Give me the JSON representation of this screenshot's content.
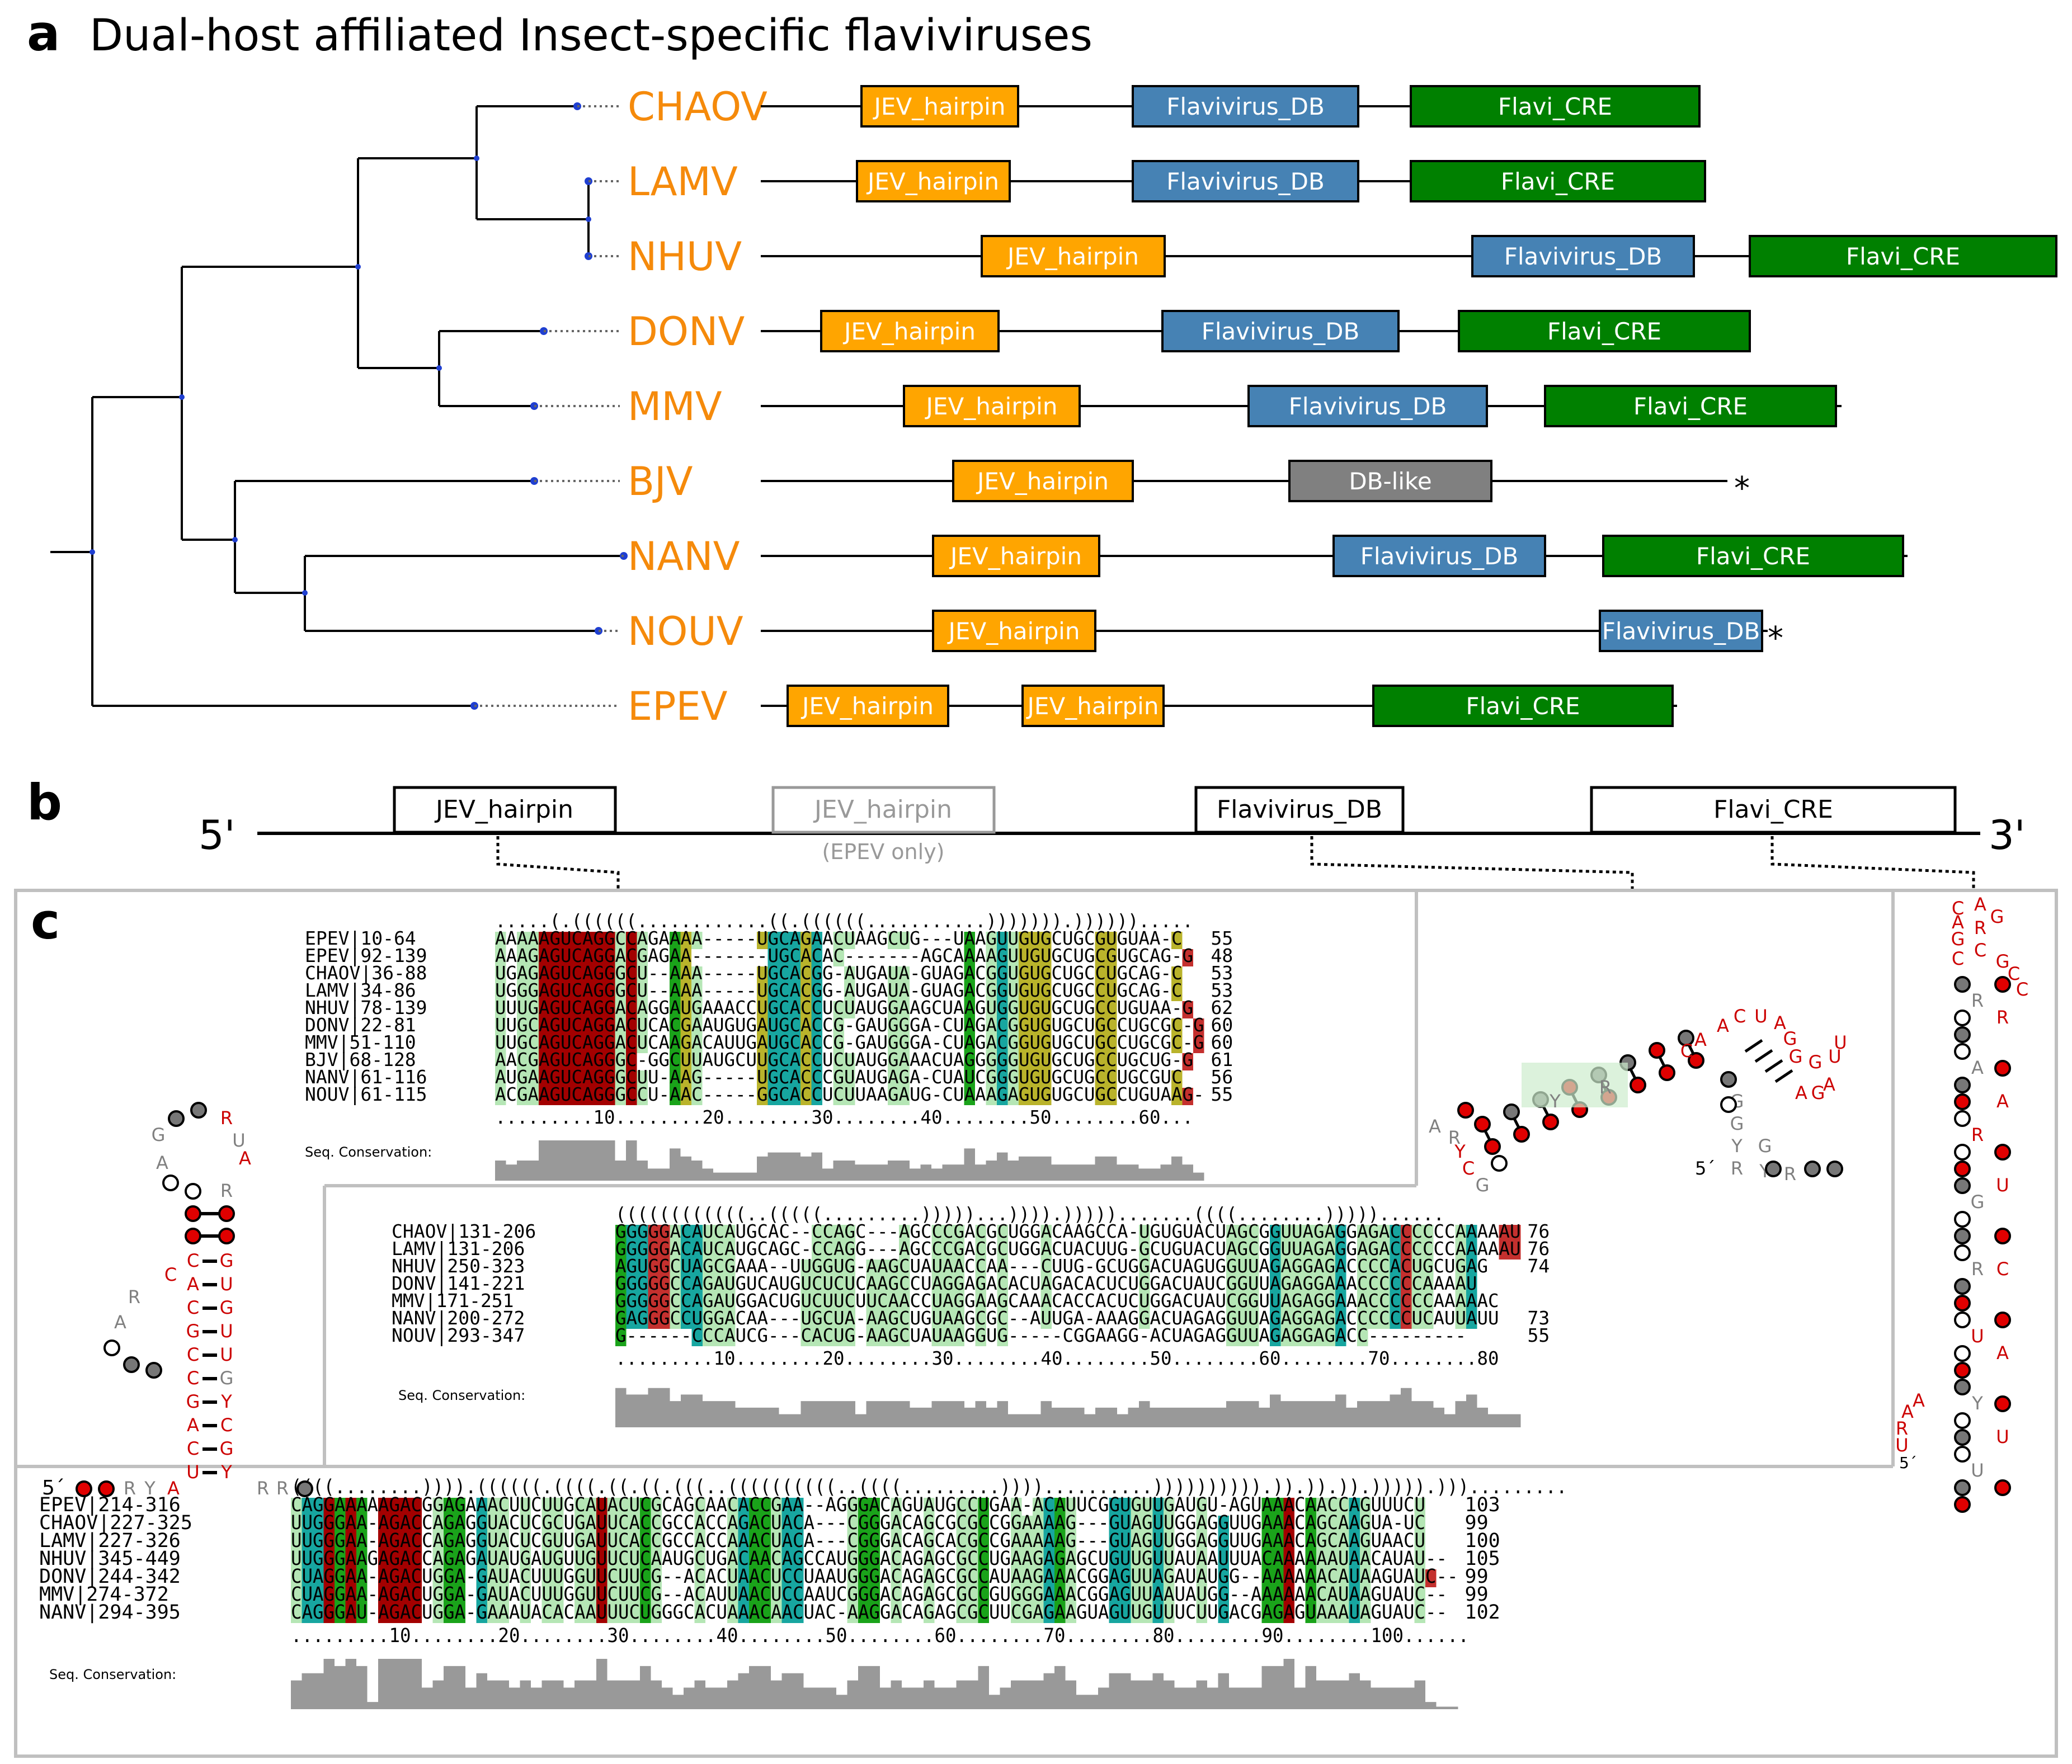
{
  "panel_a": {
    "letter": "a",
    "title": "Dual-host affiliated Insect-specific flaviviruses",
    "taxa": [
      {
        "name": "CHAOV",
        "domains": [
          {
            "label": "JEV_hairpin",
            "type": "jev"
          },
          {
            "label": "Flavivirus_DB",
            "type": "db"
          },
          {
            "label": "Flavi_CRE",
            "type": "cre"
          }
        ],
        "star": false
      },
      {
        "name": "LAMV",
        "domains": [
          {
            "label": "JEV_hairpin",
            "type": "jev"
          },
          {
            "label": "Flavivirus_DB",
            "type": "db"
          },
          {
            "label": "Flavi_CRE",
            "type": "cre"
          }
        ],
        "star": false
      },
      {
        "name": "NHUV",
        "domains": [
          {
            "label": "JEV_hairpin",
            "type": "jev"
          },
          {
            "label": "Flavivirus_DB",
            "type": "db"
          },
          {
            "label": "Flavi_CRE",
            "type": "cre"
          }
        ],
        "star": false
      },
      {
        "name": "DONV",
        "domains": [
          {
            "label": "JEV_hairpin",
            "type": "jev"
          },
          {
            "label": "Flavivirus_DB",
            "type": "db"
          },
          {
            "label": "Flavi_CRE",
            "type": "cre"
          }
        ],
        "star": false
      },
      {
        "name": "MMV",
        "domains": [
          {
            "label": "JEV_hairpin",
            "type": "jev"
          },
          {
            "label": "Flavivirus_DB",
            "type": "db"
          },
          {
            "label": "Flavi_CRE",
            "type": "cre"
          }
        ],
        "star": false
      },
      {
        "name": "BJV",
        "domains": [
          {
            "label": "JEV_hairpin",
            "type": "jev"
          },
          {
            "label": "DB-like",
            "type": "dblike"
          }
        ],
        "star": true
      },
      {
        "name": "NANV",
        "domains": [
          {
            "label": "JEV_hairpin",
            "type": "jev"
          },
          {
            "label": "Flavivirus_DB",
            "type": "db"
          },
          {
            "label": "Flavi_CRE",
            "type": "cre"
          }
        ],
        "star": false
      },
      {
        "name": "NOUV",
        "domains": [
          {
            "label": "JEV_hairpin",
            "type": "jev"
          },
          {
            "label": "Flavivirus_DB",
            "type": "db"
          }
        ],
        "star": true
      },
      {
        "name": "EPEV",
        "domains": [
          {
            "label": "JEV_hairpin",
            "type": "jev"
          },
          {
            "label": "JEV_hairpin",
            "type": "jev"
          },
          {
            "label": "Flavi_CRE",
            "type": "cre"
          }
        ],
        "star": false
      }
    ],
    "star_symbol": "*"
  },
  "panel_b": {
    "letter": "b",
    "five_prime": "5'",
    "three_prime": "3'",
    "domains": [
      "JEV_hairpin",
      "JEV_hairpin",
      "Flavivirus_DB",
      "Flavi_CRE"
    ],
    "epev_note": "(EPEV only)"
  },
  "panel_c": {
    "letter": "c",
    "conservation_label": "Seq. Conservation:",
    "align1": {
      "structure": ".....(.((((((............((.((((((...........))))))).)))))).....",
      "rows": [
        {
          "id": "EPEV|10-64",
          "seq": "AAAAAGUCAGGCCAGAAAA-----UGCAGAACUAAGCUG---UAAGUUGUGCUGCGUGUAA-C",
          "end": "55"
        },
        {
          "id": "EPEV|92-139",
          "seq": "AAAGAGUCAGGACGAGAA-------UGCACAC-------AGCAAAAGUUGUGCUGCGUGCAG-G",
          "end": "48"
        },
        {
          "id": "CHAOV|36-88",
          "seq": "UGAGAGUCAGGGCU--AAA-----UGCACGG-AUGAUA-GUAGACGGUGUGCUGCCUGCAG-C",
          "end": "53"
        },
        {
          "id": "LAMV|34-86",
          "seq": "UGGGAGUCAGGGCU--AAA-----UGCACGG-AUGAUA-GUAGACGGUGUGCUGCCUGCAG-C",
          "end": "53"
        },
        {
          "id": "NHUV|78-139",
          "seq": "UUUGAGUCAGGACAGGAUGAAACCUGCACCUCUAUGGAAGCUAAGUGGUGUGCUGCCUGUAA-G",
          "end": "62"
        },
        {
          "id": "DONV|22-81",
          "seq": "UUGCAGUCAGGACUCACGAAUGUGAUGCACCG-GAUGGGA-CUAGACGGUGUGCUGCCUGCGC-G",
          "end": "60"
        },
        {
          "id": "MMV|51-110",
          "seq": "UUGCAGUCAGGACUCAAGACAUUGAUGCACCG-GAUGGGA-CUAGACGGUGUGCUGCCUGCGC-G",
          "end": "60"
        },
        {
          "id": "BJV|68-128",
          "seq": "AACGAGUCAGGGC-GGCUUAUGCUUGCACCUCUAUGGAAACUAGGGGGUGUGCUGCCUGCUG-G",
          "end": "61"
        },
        {
          "id": "NANV|61-116",
          "seq": "AUGAAGUCAGGGCUU-AAG-----UGCACCCGUAUGAGA-CUAUCGGGUGUGCUGCCUGCGUC",
          "end": "56"
        },
        {
          "id": "NOUV|61-115",
          "seq": "ACGAAGUCAGGGCCU-AAC-----GGCACCUCUUAAGAUG-CUAAAGAGUGUGCUGCCUGUAAG-",
          "end": "55"
        }
      ],
      "ruler": ".........10........20........30........40........50........60..."
    },
    "align2": {
      "structure": "((((((((((((..(((((.........)))))...)))).))))).......((((........)))))......",
      "rows": [
        {
          "id": "CHAOV|131-206",
          "seq": "GGGGGACAUCAUGCAC--CCAGC---AGCCCGACGCUGGACAAGCCA-UGUGUACUAGCGGUUAGAGGAGACCCCCCAAAAAU",
          "end": "76"
        },
        {
          "id": "LAMV|131-206",
          "seq": "GGGGGACAUCAUGCAGC-CCAGG---AGCCCGACGCUGGACUACUUG-GCUGUACUAGCGGUUAGAGGAGACCCCCCAAAAAU",
          "end": "76"
        },
        {
          "id": "NHUV|250-323",
          "seq": "AGUGGCUAGCGAAA--UUGGUG-AAGCUAUAACCAA---CUUG-GCUGGACUAGUGGUUAGAGGAGACCCCACUGCUGAG",
          "end": "74"
        },
        {
          "id": "DONV|141-221",
          "seq": "GGGGGCCAGAUGUCAUGUCUCUCAAGCCUAGGAGACACUAGACACUCUGGACUAUCGGUUAGAGGAAACCCCCCAAAAU",
          "end": ""
        },
        {
          "id": "MMV|171-251",
          "seq": "GGGGGCCAGAUGGACUGUCUUCUUCAACCUAGGAAGCAAACACCACUCUGGACUAUCGGUUAGAGGAAACCCCCCAAAAAC",
          "end": ""
        },
        {
          "id": "NANV|200-272",
          "seq": "GAGGGCCUGGACAA---UGCUA-AAGCUGUAAGCGC--AUUGA-AAAGGACUAGAGGUUAGAGGAGACCCCCCUCAUUAUU",
          "end": "73"
        },
        {
          "id": "NOUV|293-347",
          "seq": "G------CCCAUCG---CACUG-AAGCUAUAAGGUG-----CGGAAGG-ACUAGAGGUUAGAGGAGACC---------",
          "end": "55"
        }
      ],
      "ruler": ".........10........20........30........40........50........60........70........80"
    },
    "align3": {
      "structure": "((((........)))).((((((.((((.((.((.(((..((((((((((..((((.........))))..........)))))))))).)).)).)).))))).))).........",
      "rows": [
        {
          "id": "EPEV|214-316",
          "seq": "CAGGAAAAAGACGGAGAAACUUCUUGCAUACUCGCAGCAACACCGAA--AGGGACAGUAUGCCUGAA-ACAUUCGGUGUUGAUGU-AGUAAACAACCAGUUUCU",
          "end": "103"
        },
        {
          "id": "CHAOV|227-325",
          "seq": "UUGGGAA-AGACCAGAGGUACUCGCUGAUUCACCGCCACCAGACUACA---CGGGACAGCGCGCCGGAAAAG---GUAGUUGGAGGUUGAAACAGCAAGUA-UC",
          "end": "99"
        },
        {
          "id": "LAMV|227-326",
          "seq": "UUGGGAA-AGACCAGAGGUACUCGUUGAUUCACCGCCACCAAACUACA---CGGGACAGCACGCCGAAAAAG---GUAGUUGGAGGUUGAAACAGCAAGUAACU",
          "end": "100"
        },
        {
          "id": "NHUV|345-449",
          "seq": "UUGGGAAGAGACCAGAGAUAUGAUGUUGUUCUCAAUGCUGACAACAGCCAUGGGACAGAGCGCCUGAAGAGAGCUGUUGUUAUAAUUUACAAAAAAUAACAUAU--",
          "end": "105"
        },
        {
          "id": "DONV|244-342",
          "seq": "CUAGGAA-AGACUGGA-GAUACUUUGGUUCUUCG--ACACUAACUCCUAAUGGGACAGAGCGCCAUAAGAAACGGAGUUAGAUAUGG--AAAAAACAUAAGUAUC--",
          "end": "99"
        },
        {
          "id": "MMV|274-372",
          "seq": "CUAGGAA-AGACUGGA-GAUACUUUGGUUCUUCG--ACAUUAACUCCAAUCGGGACAGAGCGCCGUGGGAAACGGAGUUAAUAUGG--AAAAAACAUAAGUAUC--",
          "end": "99"
        },
        {
          "id": "NANV|294-395",
          "seq": "CAGGGAU-AGACUGGA-GAAAUACACAAUUUCUGGGCACUAAACAACUAC-AAGGACAGAGCGCUUCGAGAAGUAGUUGUUUCUUGACGAGAGUAAAUAGUAUC--",
          "end": "102"
        }
      ],
      "ruler": ".........10........20........30........40........50........60........70........80........90........100......"
    },
    "struct_jev": {
      "loop": [
        "G",
        "A",
        "R",
        "U",
        "A"
      ],
      "stem_left": [
        "C",
        "A",
        "C",
        "G",
        "C",
        "G",
        "A",
        "C",
        "U"
      ],
      "stem_right": [
        "G",
        "U",
        "G",
        "U",
        "U",
        "G",
        "Y",
        "C",
        "G",
        "Y"
      ],
      "bulge": [
        "R",
        "A"
      ],
      "ambig": [
        "R",
        "R",
        "Y",
        "R",
        "R",
        "R",
        "R",
        "A"
      ],
      "five_prime": "5´"
    },
    "struct_db": {
      "letters": [
        "A",
        "C",
        "U",
        "A",
        "G",
        "G",
        "G",
        "U",
        "U",
        "A",
        "G",
        "A",
        "G",
        "G",
        "A",
        "C",
        "C",
        "U",
        "Y",
        "R",
        "G",
        "Y",
        "R",
        "Y",
        "C",
        "Y",
        "C",
        "G",
        "A",
        "A",
        "R"
      ],
      "five_prime": "5´"
    },
    "struct_cre": {
      "letters": [
        "C",
        "A",
        "G",
        "A",
        "R",
        "G",
        "C",
        "C",
        "G",
        "C",
        "C",
        "R",
        "R",
        "A",
        "A",
        "R",
        "U",
        "G",
        "R",
        "C",
        "U",
        "A",
        "Y",
        "U",
        "U",
        "A",
        "A",
        "R",
        "U",
        "A",
        "C",
        "A",
        "A",
        "G",
        "A",
        "R",
        "Y",
        "C",
        "R",
        "G",
        "U",
        "Y",
        "G",
        "A"
      ],
      "five_prime": "5´"
    }
  },
  "colors": {
    "taxon": "#f58a0b",
    "jev": "#ffa500",
    "db": "#4682b4",
    "cre": "#008000",
    "dblike": "#808080",
    "red_nt": "#cc0000",
    "gray_nt": "#808080",
    "node": "#1f3fd1",
    "frame": "#c0c0c0",
    "conservation": "#999999"
  }
}
